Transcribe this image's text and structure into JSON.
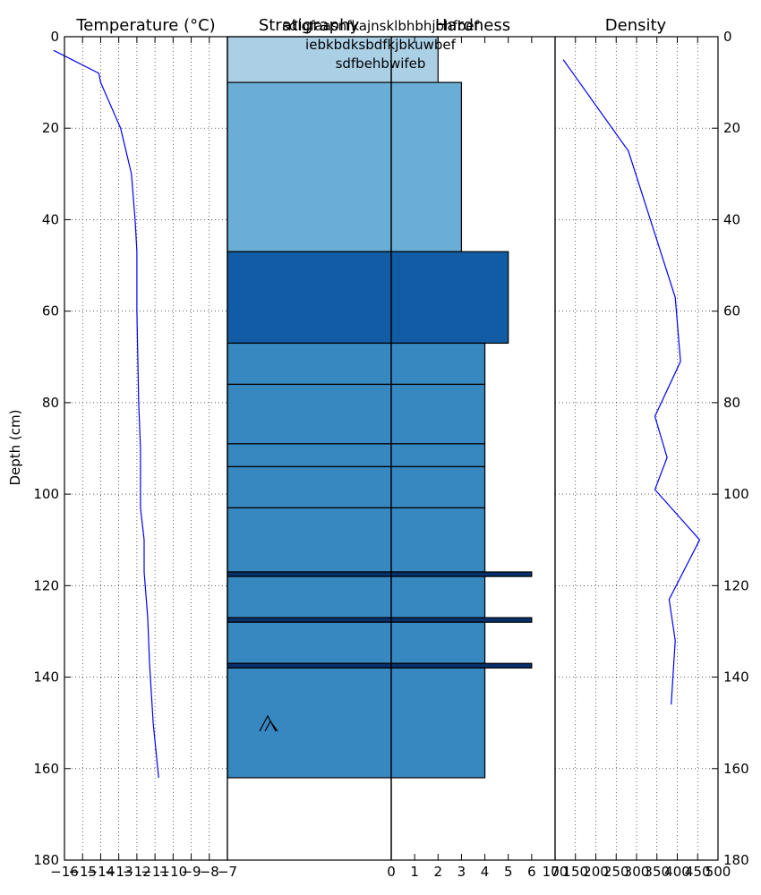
{
  "chart_data": {
    "type": "line",
    "y_axis": {
      "label": "Depth (cm)",
      "range": [
        180,
        0
      ],
      "ticks": [
        0,
        20,
        40,
        60,
        80,
        100,
        120,
        140,
        160,
        180
      ]
    },
    "panels": [
      {
        "id": "temperature",
        "title": "Temperature ($^\\circ$C)",
        "title_display": "Temperature (°C)",
        "type": "line",
        "xlim": [
          -16,
          -7
        ],
        "x_ticks": [
          -16,
          -15,
          -14,
          -13,
          -12,
          -11,
          -10,
          -9,
          -8,
          -7
        ],
        "x_tick_labels": [
          "−16",
          "−15",
          "−14",
          "−13",
          "−12",
          "−11",
          "−10",
          "−9",
          "−8",
          "−7"
        ],
        "grid": true,
        "color": "#0000ff",
        "points": [
          {
            "x": -16.6,
            "depth": 3
          },
          {
            "x": -14.1,
            "depth": 8
          },
          {
            "x": -14.0,
            "depth": 10
          },
          {
            "x": -12.9,
            "depth": 20
          },
          {
            "x": -12.6,
            "depth": 25
          },
          {
            "x": -12.3,
            "depth": 30
          },
          {
            "x": -12.1,
            "depth": 40
          },
          {
            "x": -12.0,
            "depth": 47
          },
          {
            "x": -12.0,
            "depth": 60
          },
          {
            "x": -11.9,
            "depth": 80
          },
          {
            "x": -11.8,
            "depth": 90
          },
          {
            "x": -11.8,
            "depth": 103
          },
          {
            "x": -11.6,
            "depth": 110
          },
          {
            "x": -11.6,
            "depth": 117
          },
          {
            "x": -11.4,
            "depth": 127
          },
          {
            "x": -11.3,
            "depth": 137
          },
          {
            "x": -11.1,
            "depth": 150
          },
          {
            "x": -10.8,
            "depth": 162
          }
        ]
      },
      {
        "id": "stratigraphy-hardness",
        "title_left": "Stratigraphy",
        "title_right": "Hardness",
        "type": "bar",
        "xlim": [
          -7,
          7
        ],
        "x_ticks": [
          0,
          1,
          2,
          3,
          4,
          5,
          6,
          7
        ],
        "x_tick_labels": [
          "0",
          "1",
          "2",
          "3",
          "4",
          "5",
          "6",
          "7"
        ],
        "annotation_lines": [
          "sdlgfaasnfkajnsklbhbhjbhfbef",
          "iebkbdksbdfkjbkuwbef",
          "sdfbehbwifeb"
        ],
        "symbol": "^^ (surface hoar / depth hoar glyph)",
        "layers": [
          {
            "top": 0,
            "bottom": 10,
            "hardness": 2,
            "color": "#abd0e6"
          },
          {
            "top": 10,
            "bottom": 47,
            "hardness": 3,
            "color": "#6aaed6"
          },
          {
            "top": 47,
            "bottom": 67,
            "hardness": 5,
            "color": "#115ca5"
          },
          {
            "top": 67,
            "bottom": 76,
            "hardness": 4,
            "color": "#3787c0"
          },
          {
            "top": 76,
            "bottom": 89,
            "hardness": 4,
            "color": "#3787c0"
          },
          {
            "top": 89,
            "bottom": 94,
            "hardness": 4,
            "color": "#3787c0"
          },
          {
            "top": 94,
            "bottom": 103,
            "hardness": 4,
            "color": "#3787c0"
          },
          {
            "top": 103,
            "bottom": 117,
            "hardness": 4,
            "color": "#3787c0"
          },
          {
            "top": 117,
            "bottom": 118,
            "hardness": 6,
            "color": "#08306b"
          },
          {
            "top": 118,
            "bottom": 127,
            "hardness": 4,
            "color": "#3787c0"
          },
          {
            "top": 127,
            "bottom": 128,
            "hardness": 6,
            "color": "#08306b"
          },
          {
            "top": 128,
            "bottom": 137,
            "hardness": 4,
            "color": "#3787c0"
          },
          {
            "top": 137,
            "bottom": 138,
            "hardness": 6,
            "color": "#08306b"
          },
          {
            "top": 138,
            "bottom": 162,
            "hardness": 4,
            "color": "#3787c0"
          }
        ]
      },
      {
        "id": "density",
        "title": "Density",
        "type": "line",
        "xlim": [
          100,
          500
        ],
        "x_ticks": [
          100,
          150,
          200,
          250,
          300,
          350,
          400,
          450,
          500
        ],
        "x_tick_labels": [
          "100",
          "150",
          "200",
          "250",
          "300",
          "350",
          "400",
          "450",
          "500"
        ],
        "grid": true,
        "color": "#0000ff",
        "points": [
          {
            "x": 120,
            "depth": 5
          },
          {
            "x": 280,
            "depth": 25
          },
          {
            "x": 395,
            "depth": 57
          },
          {
            "x": 408,
            "depth": 71
          },
          {
            "x": 345,
            "depth": 83
          },
          {
            "x": 375,
            "depth": 92
          },
          {
            "x": 345,
            "depth": 99
          },
          {
            "x": 455,
            "depth": 110
          },
          {
            "x": 380,
            "depth": 123
          },
          {
            "x": 395,
            "depth": 132
          },
          {
            "x": 385,
            "depth": 146
          }
        ]
      }
    ]
  }
}
